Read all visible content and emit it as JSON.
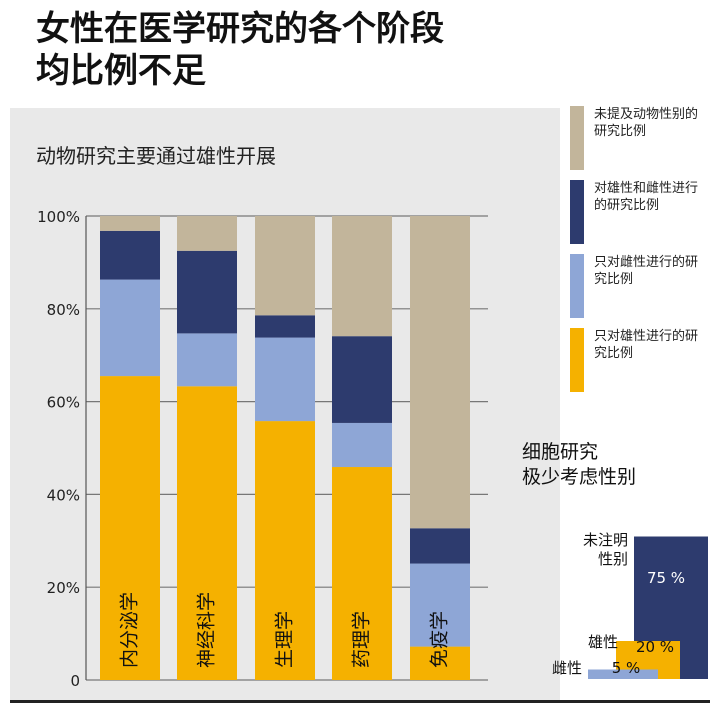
{
  "title": {
    "line1": "女性在医学研究的各个阶段",
    "line2": "均比例不足"
  },
  "chart_data": [
    {
      "type": "bar",
      "stacked": true,
      "title": "动物研究主要通过雄性开展",
      "categories": [
        "内分泌学",
        "神经科学",
        "生理学",
        "药理学",
        "免疫学"
      ],
      "y_tick_labels": [
        "100%",
        "80%",
        "60%",
        "40%",
        "20%",
        "0"
      ],
      "ylim": [
        0,
        100
      ],
      "grid": true,
      "legend_position": "right",
      "series": [
        {
          "name": "只对雄性进行的研究比例",
          "color": "#f5b100",
          "values": [
            65.5,
            63.3,
            55.8,
            45.9,
            7.2
          ]
        },
        {
          "name": "只对雌性进行的研究比例",
          "color": "#8ea6d6",
          "values": [
            20.8,
            11.4,
            18.0,
            9.5,
            17.9
          ]
        },
        {
          "name": "对雄性和雌性进行的研究比例",
          "color": "#2d3b6e",
          "values": [
            10.5,
            17.8,
            4.8,
            18.7,
            7.6
          ]
        },
        {
          "name": "未提及动物性别的研究比例",
          "color": "#c2b59b",
          "values": [
            3.2,
            7.5,
            21.4,
            25.9,
            67.3
          ]
        }
      ]
    },
    {
      "type": "bar",
      "title": "细胞研究极少考虑性别",
      "categories": [
        "未注明性别",
        "雄性",
        "雌性"
      ],
      "values": [
        75,
        20,
        5
      ],
      "value_labels": [
        "75 %",
        "20 %",
        "5 %"
      ],
      "colors": [
        "#2d3b6e",
        "#f5b100",
        "#8ea6d6"
      ]
    }
  ],
  "legend": [
    {
      "label": "未提及动物性别的研究比例",
      "color": "#c2b59b"
    },
    {
      "label": "对雄性和雌性进行的研究比例",
      "color": "#2d3b6e"
    },
    {
      "label": "只对雌性进行的研究比例",
      "color": "#8ea6d6"
    },
    {
      "label": "只对雄性进行的研究比例",
      "color": "#f5b100"
    }
  ],
  "cell_chart": {
    "title_line1": "细胞研究",
    "title_line2": "极少考虑性别",
    "labels": [
      "未注明\n性别",
      "雄性",
      "雌性"
    ]
  }
}
